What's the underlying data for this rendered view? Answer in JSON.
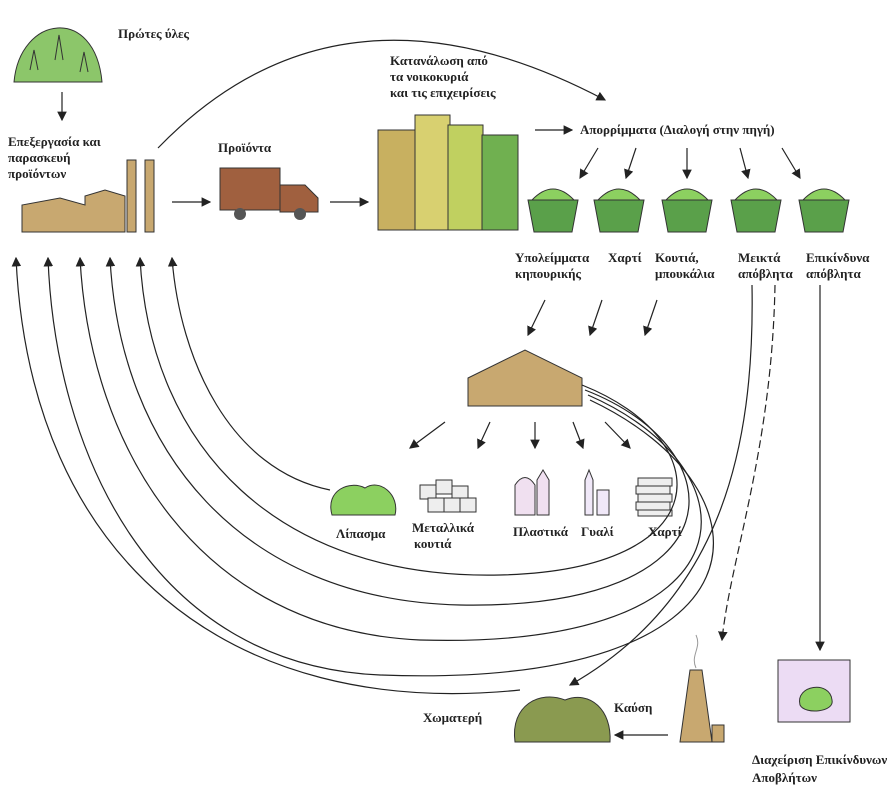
{
  "nodes": [
    {
      "lines": [
        "Πρώτες ύλες"
      ]
    },
    {
      "lines": [
        "Επεξεργασία και",
        "παρασκευή",
        "προϊόντων"
      ]
    },
    {
      "lines": [
        "Προϊόντα"
      ]
    },
    {
      "lines": [
        "Κατανάλωση από",
        "τα νοικοκυριά",
        "και τις επιχειρίσεις"
      ]
    },
    {
      "lines": [
        "Απορρίμματα (Διαλογή στην πηγή)"
      ]
    },
    {
      "lines": [
        "Υπολείμματα",
        "κηπουρικής"
      ]
    },
    {
      "lines": [
        "Χαρτί"
      ]
    },
    {
      "lines": [
        "Κουτιά,",
        "μπουκάλια"
      ]
    },
    {
      "lines": [
        "Μεικτά",
        "απόβλητα"
      ]
    },
    {
      "lines": [
        "Επικίνδυνα",
        "απόβλητα"
      ]
    },
    {
      "lines": [
        "Λίπασμα"
      ]
    },
    {
      "lines": [
        "Μεταλλικά",
        "κουτιά"
      ]
    },
    {
      "lines": [
        "Πλαστικά"
      ]
    },
    {
      "lines": [
        "Γυαλί"
      ]
    },
    {
      "lines": [
        "Χαρτί"
      ]
    },
    {
      "lines": [
        "Χωματερή"
      ]
    },
    {
      "lines": [
        "Καύση"
      ]
    },
    {
      "lines": [
        "Διαχείριση Επικίνδυνων",
        "Αποβλήτων"
      ]
    }
  ]
}
